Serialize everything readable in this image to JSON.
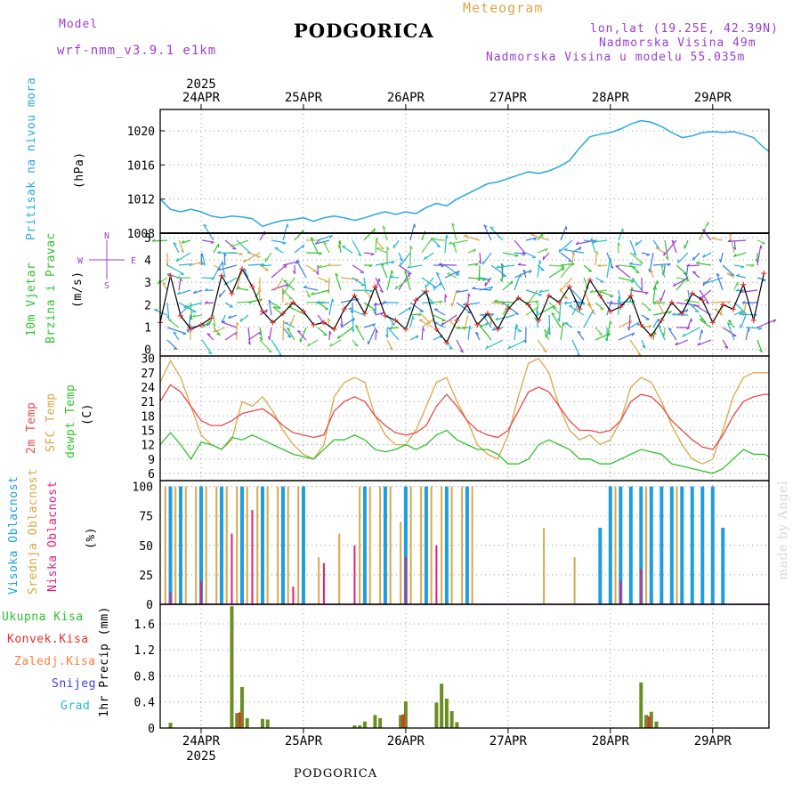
{
  "header": {
    "model_label": "Model",
    "model_name": "wrf-nmm_v3.9.1  e1km",
    "station": "PODGORICA",
    "meteogram": "Meteogram",
    "lonlat": "lon,lat (19.25E, 42.39N)",
    "altitude": "Nadmorska Visina 49m",
    "model_altitude": "Nadmorska Visina u modelu 55.035m",
    "watermark": "made by Angel",
    "footer_station": "PODGORICA"
  },
  "colors": {
    "pressure": "#29a8e0",
    "temp2m": "#e84a4a",
    "sfc": "#d9a84a",
    "dewpt": "#2fc22f",
    "cloud_high": "#1e9ee0",
    "cloud_mid": "#d9a84a",
    "cloud_low": "#e0207a",
    "precip_total": "#6b8e23",
    "precip_conv": "#e83030",
    "snow": "#4040e0",
    "grad": "#20c0c0",
    "purple": "#9c3fd0"
  },
  "time_axis": {
    "top_year": "2025",
    "bottom_year": "2025",
    "days": [
      "24APR",
      "25APR",
      "26APR",
      "27APR",
      "28APR",
      "29APR"
    ]
  },
  "chart_data": [
    {
      "type": "line",
      "ylabel_main": "Pritisak na nivou mora",
      "ylabel_unit": "(hPa)",
      "yticks": [
        "1020",
        "1016",
        "1012",
        "1008"
      ],
      "ylim": [
        1008,
        1022.5
      ],
      "x_days_range": [
        23.6,
        29.55
      ],
      "series": [
        {
          "key": "pressure",
          "x": [
            23.6,
            23.7,
            23.8,
            23.9,
            24.0,
            24.1,
            24.2,
            24.3,
            24.4,
            24.5,
            24.6,
            24.7,
            24.8,
            24.9,
            25.0,
            25.1,
            25.2,
            25.3,
            25.4,
            25.5,
            25.6,
            25.7,
            25.8,
            25.9,
            26.0,
            26.1,
            26.2,
            26.3,
            26.4,
            26.5,
            26.6,
            26.7,
            26.8,
            26.9,
            27.0,
            27.1,
            27.2,
            27.3,
            27.4,
            27.5,
            27.6,
            27.7,
            27.8,
            27.9,
            28.0,
            28.1,
            28.2,
            28.3,
            28.4,
            28.5,
            28.6,
            28.7,
            28.8,
            28.9,
            29.0,
            29.1,
            29.2,
            29.3,
            29.4,
            29.5,
            29.55
          ],
          "values": [
            1012,
            1010.8,
            1010.5,
            1010.8,
            1010.5,
            1010,
            1009.8,
            1010,
            1009.9,
            1009.7,
            1008.8,
            1009.2,
            1009.5,
            1009.6,
            1009.8,
            1009.4,
            1009.8,
            1010,
            1009.8,
            1009.5,
            1009.8,
            1010.2,
            1010.5,
            1010.2,
            1010.5,
            1010.3,
            1011,
            1011.5,
            1011.2,
            1012,
            1012.6,
            1013.2,
            1013.8,
            1014,
            1014.4,
            1014.8,
            1015.2,
            1015,
            1015.3,
            1015.8,
            1016.5,
            1018,
            1019.3,
            1019.6,
            1019.8,
            1020.2,
            1020.8,
            1021.2,
            1021,
            1020.5,
            1019.8,
            1019.2,
            1019.4,
            1019.8,
            1019.9,
            1019.8,
            1019.9,
            1019.6,
            1019.2,
            1018,
            1017.6
          ]
        }
      ]
    },
    {
      "type": "scatter",
      "ylabel_main": "10m Vjetar",
      "ylabel_main2": "Brzina i Pravac",
      "ylabel_unit": "(m/s)",
      "compass": [
        "N",
        "W",
        "E",
        "S"
      ],
      "yticks": [
        "5",
        "4",
        "3",
        "2",
        "1",
        "0"
      ],
      "ylim": [
        -0.3,
        5.2
      ],
      "series": [
        {
          "key": "wind_speed",
          "x": [
            23.6,
            23.7,
            23.8,
            23.9,
            24.0,
            24.1,
            24.2,
            24.3,
            24.4,
            24.5,
            24.6,
            24.7,
            24.8,
            24.9,
            25.0,
            25.1,
            25.2,
            25.3,
            25.4,
            25.5,
            25.6,
            25.7,
            25.8,
            25.9,
            26.0,
            26.1,
            26.2,
            26.3,
            26.4,
            26.5,
            26.6,
            26.7,
            26.8,
            26.9,
            27.0,
            27.1,
            27.2,
            27.3,
            27.4,
            27.5,
            27.6,
            27.7,
            27.8,
            27.9,
            28.0,
            28.1,
            28.2,
            28.3,
            28.4,
            28.5,
            28.6,
            28.7,
            28.8,
            28.9,
            29.0,
            29.1,
            29.2,
            29.3,
            29.4,
            29.5
          ],
          "values": [
            1.2,
            3.3,
            1.5,
            0.9,
            1.1,
            1.4,
            3.3,
            2.5,
            3.6,
            2.8,
            1.7,
            1.2,
            1.6,
            2.1,
            1.7,
            1.1,
            1.2,
            0.9,
            1.8,
            2.4,
            1.6,
            2.8,
            1.5,
            1.3,
            0.9,
            2.2,
            2.6,
            0.9,
            0.3,
            1.3,
            2.0,
            1.1,
            1.6,
            0.9,
            1.8,
            2.3,
            2.0,
            1.3,
            2.4,
            2.1,
            2.8,
            1.8,
            3.1,
            2.4,
            1.7,
            1.9,
            2.4,
            1.1,
            0.6,
            1.3,
            2.1,
            1.6,
            2.5,
            2.2,
            1.2,
            2.0,
            1.8,
            2.9,
            1.3,
            3.4
          ]
        }
      ]
    },
    {
      "type": "line",
      "ylabel_a": "2m Temp",
      "ylabel_b": "SFC Temp",
      "ylabel_c": "dewpt Temp",
      "ylabel_unit": "(C)",
      "yticks": [
        "30",
        "27",
        "24",
        "21",
        "18",
        "15",
        "12",
        "9",
        "6"
      ],
      "ylim": [
        4.5,
        30.5
      ],
      "series": [
        {
          "key": "sfc",
          "x": [
            23.6,
            23.7,
            23.8,
            23.9,
            24.0,
            24.1,
            24.2,
            24.3,
            24.4,
            24.5,
            24.6,
            24.7,
            24.8,
            24.9,
            25.0,
            25.1,
            25.2,
            25.3,
            25.4,
            25.5,
            25.6,
            25.7,
            25.8,
            25.9,
            26.0,
            26.1,
            26.2,
            26.3,
            26.4,
            26.5,
            26.6,
            26.7,
            26.8,
            26.9,
            27.0,
            27.1,
            27.2,
            27.3,
            27.4,
            27.5,
            27.6,
            27.7,
            27.8,
            27.9,
            28.0,
            28.1,
            28.2,
            28.3,
            28.4,
            28.5,
            28.6,
            28.7,
            28.8,
            28.9,
            29.0,
            29.1,
            29.2,
            29.3,
            29.4,
            29.5,
            29.55
          ],
          "values": [
            25,
            29.5,
            26,
            20,
            14,
            12,
            11,
            13,
            21,
            20,
            22,
            19,
            15,
            12,
            10,
            9,
            12,
            22,
            25,
            26,
            25,
            18,
            14,
            12,
            12,
            15,
            20,
            25,
            26,
            21,
            17,
            12,
            10,
            9,
            14,
            22,
            29,
            30,
            27,
            20,
            15,
            13,
            14,
            12,
            13,
            17,
            24,
            26,
            25,
            21,
            16,
            12,
            9,
            8,
            9,
            15,
            22,
            26,
            27,
            27,
            27
          ]
        },
        {
          "key": "temp2m",
          "x": [
            23.6,
            23.7,
            23.8,
            23.9,
            24.0,
            24.1,
            24.2,
            24.3,
            24.4,
            24.5,
            24.6,
            24.7,
            24.8,
            24.9,
            25.0,
            25.1,
            25.2,
            25.3,
            25.4,
            25.5,
            25.6,
            25.7,
            25.8,
            25.9,
            26.0,
            26.1,
            26.2,
            26.3,
            26.4,
            26.5,
            26.6,
            26.7,
            26.8,
            26.9,
            27.0,
            27.1,
            27.2,
            27.3,
            27.4,
            27.5,
            27.6,
            27.7,
            27.8,
            27.9,
            28.0,
            28.1,
            28.2,
            28.3,
            28.4,
            28.5,
            28.6,
            28.7,
            28.8,
            28.9,
            29.0,
            29.1,
            29.2,
            29.3,
            29.4,
            29.5,
            29.55
          ],
          "values": [
            21,
            24.5,
            23,
            20,
            17,
            16,
            16,
            17,
            18.5,
            19,
            19.5,
            18,
            16,
            14.5,
            14,
            13.5,
            14,
            19,
            21,
            22,
            21,
            18,
            16,
            14.5,
            14,
            14.5,
            16,
            20,
            22.5,
            20,
            17,
            15,
            14,
            13.5,
            15,
            19,
            23,
            24,
            23,
            20,
            17,
            15,
            15,
            14.5,
            15,
            17,
            21,
            22.5,
            22,
            20,
            17,
            15,
            13,
            11.5,
            11,
            14,
            18,
            21,
            22,
            22.5,
            22.5
          ]
        },
        {
          "key": "dewpt",
          "x": [
            23.6,
            23.7,
            23.8,
            23.9,
            24.0,
            24.1,
            24.2,
            24.3,
            24.4,
            24.5,
            24.6,
            24.7,
            24.8,
            24.9,
            25.0,
            25.1,
            25.2,
            25.3,
            25.4,
            25.5,
            25.6,
            25.7,
            25.8,
            25.9,
            26.0,
            26.1,
            26.2,
            26.3,
            26.4,
            26.5,
            26.6,
            26.7,
            26.8,
            26.9,
            27.0,
            27.1,
            27.2,
            27.3,
            27.4,
            27.5,
            27.6,
            27.7,
            27.8,
            27.9,
            28.0,
            28.1,
            28.2,
            28.3,
            28.4,
            28.5,
            28.6,
            28.7,
            28.8,
            28.9,
            29.0,
            29.1,
            29.2,
            29.3,
            29.4,
            29.5,
            29.55
          ],
          "values": [
            12,
            14.5,
            12,
            9,
            12.5,
            12,
            11,
            13.5,
            13,
            14,
            13,
            12,
            11,
            10,
            9.5,
            9,
            11,
            13,
            13,
            14,
            13,
            11,
            10.5,
            11,
            12,
            11,
            12,
            14,
            15,
            13,
            12,
            11,
            11,
            10,
            8,
            8,
            9,
            12,
            13,
            12,
            11,
            9,
            9,
            8,
            8,
            9,
            10,
            11,
            10.5,
            10,
            8,
            7.5,
            7,
            6.5,
            6,
            7,
            9,
            11,
            10,
            10,
            9.5
          ]
        }
      ]
    },
    {
      "type": "bar",
      "ylabel_a": "Visoka Oblacnost",
      "ylabel_b": "Srednja Oblacnost",
      "ylabel_c": "Niska Oblacnost",
      "ylabel_unit": "(%)",
      "yticks": [
        "100",
        "75",
        "50",
        "25",
        "0"
      ],
      "ylim": [
        0,
        105
      ],
      "series": [
        {
          "key": "cloud_high",
          "x": [
            23.7,
            23.8,
            24.0,
            24.2,
            24.4,
            24.6,
            24.8,
            25.0,
            25.6,
            25.8,
            26.0,
            26.2,
            26.4,
            26.6,
            27.9,
            28.0,
            28.1,
            28.2,
            28.3,
            28.4,
            28.5,
            28.6,
            28.7,
            28.8,
            28.9,
            29.0,
            29.1
          ],
          "values": [
            100,
            100,
            100,
            100,
            100,
            100,
            100,
            100,
            100,
            100,
            100,
            100,
            100,
            100,
            65,
            100,
            100,
            100,
            100,
            100,
            100,
            100,
            100,
            100,
            100,
            100,
            65
          ]
        },
        {
          "key": "cloud_mid",
          "x": [
            23.65,
            23.75,
            23.85,
            23.95,
            24.05,
            24.15,
            24.25,
            24.35,
            24.45,
            24.55,
            24.65,
            24.75,
            24.85,
            24.95,
            25.15,
            25.35,
            25.55,
            25.65,
            25.75,
            25.85,
            25.95,
            26.05,
            26.15,
            26.25,
            26.35,
            26.45,
            26.55,
            26.65,
            27.35,
            27.65,
            28.05,
            28.35,
            28.65
          ],
          "values": [
            100,
            100,
            100,
            100,
            100,
            100,
            100,
            100,
            100,
            100,
            100,
            100,
            100,
            100,
            40,
            60,
            100,
            100,
            100,
            100,
            70,
            100,
            100,
            100,
            100,
            100,
            100,
            100,
            65,
            40,
            100,
            100,
            100
          ]
        },
        {
          "key": "cloud_low",
          "x": [
            23.7,
            24.0,
            24.3,
            24.5,
            24.9,
            25.2,
            25.5,
            26.0,
            26.3,
            28.1,
            28.3
          ],
          "values": [
            10,
            20,
            60,
            80,
            15,
            35,
            50,
            40,
            50,
            20,
            30
          ]
        }
      ]
    },
    {
      "type": "bar",
      "ylabel_unit": "1hr Precip (mm)",
      "legend": [
        "Ukupna Kisa",
        "Konvek.Kisa",
        "Zaledj.Kisa",
        "Snijeg",
        "Grad"
      ],
      "yticks": [
        "1.6",
        "1.2",
        "0.8",
        "0.4",
        "0"
      ],
      "ylim": [
        0,
        1.9
      ],
      "series": [
        {
          "key": "precip_total",
          "x": [
            23.7,
            24.3,
            24.35,
            24.4,
            24.45,
            24.6,
            24.65,
            25.5,
            25.55,
            25.6,
            25.7,
            25.75,
            25.95,
            26.0,
            26.3,
            26.35,
            26.4,
            26.45,
            26.5,
            28.3,
            28.35,
            28.4,
            28.45
          ],
          "values": [
            0.08,
            1.87,
            0.23,
            0.63,
            0.15,
            0.14,
            0.13,
            0.04,
            0.04,
            0.1,
            0.2,
            0.15,
            0.2,
            0.41,
            0.39,
            0.68,
            0.45,
            0.26,
            0.09,
            0.7,
            0.2,
            0.25,
            0.1
          ]
        },
        {
          "key": "precip_conv",
          "x": [
            24.35,
            25.95,
            28.35
          ],
          "values": [
            0.24,
            0.21,
            0.18
          ]
        }
      ]
    }
  ]
}
